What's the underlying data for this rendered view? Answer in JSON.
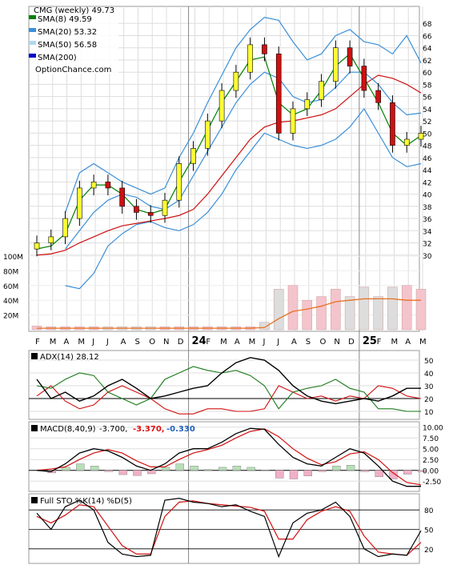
{
  "chart_data": [
    {
      "type": "candlestick",
      "title": "CMG (weekly) 49.73",
      "watermark": "OptionChance.com",
      "legend": [
        {
          "label": "SMA(8) 49.59",
          "color": "#008000"
        },
        {
          "label": "SMA(20) 53.32",
          "color": "#3a8fd9"
        },
        {
          "label": "SMA(50) 56.58",
          "color": "#b0d8f0"
        },
        {
          "label": "SMA(200)",
          "color": "#0000cc"
        }
      ],
      "price_ticks": [
        30,
        32,
        34,
        36,
        38,
        40,
        42,
        44,
        46,
        48,
        50,
        52,
        54,
        56,
        58,
        60,
        62,
        64,
        66,
        68
      ],
      "ylim": [
        28,
        70
      ],
      "volume_ticks": [
        "20M",
        "40M",
        "60M",
        "80M",
        "100M"
      ],
      "x_labels": [
        "F",
        "M",
        "A",
        "M",
        "J",
        "J",
        "A",
        "S",
        "O",
        "N",
        "D",
        "24",
        "F",
        "M",
        "A",
        "M",
        "J",
        "J",
        "A",
        "S",
        "O",
        "N",
        "D",
        "25",
        "F",
        "M",
        "A",
        "M"
      ],
      "close_by_month": [
        32,
        33,
        36,
        41,
        42,
        41,
        38,
        37,
        36.5,
        39,
        45,
        47.5,
        52,
        57,
        60,
        64.5,
        63,
        50,
        54,
        55.5,
        58.5,
        64,
        61,
        57,
        55,
        48,
        49,
        50
      ],
      "sma8_by_month": [
        31,
        31.5,
        33.5,
        39,
        41.5,
        41.5,
        40,
        37.5,
        36.8,
        37.5,
        42,
        46,
        50.5,
        55,
        58.5,
        62,
        62.5,
        55,
        53,
        54,
        57,
        61,
        63,
        59,
        55,
        50,
        48,
        49.6
      ],
      "sma20_by_month": [
        null,
        null,
        31,
        34,
        37,
        39,
        40,
        39.5,
        38,
        37.5,
        39,
        43,
        47,
        51,
        55,
        58,
        60,
        59,
        56,
        55,
        55.5,
        57.5,
        60,
        60,
        58,
        55,
        53,
        53.3
      ],
      "sma50_by_month": [
        30,
        30.2,
        30.8,
        32,
        33,
        34,
        34.8,
        35.2,
        35.6,
        36,
        36.5,
        37.5,
        40,
        43,
        46,
        49,
        51,
        51.8,
        52,
        52.5,
        53,
        54,
        56,
        58,
        59.5,
        59,
        58,
        56.6
      ],
      "bb_upper_by_month": [
        null,
        null,
        37,
        43.5,
        45,
        43.5,
        42,
        41,
        40,
        41,
        46,
        50,
        55,
        59.5,
        64,
        67,
        69,
        68.5,
        65,
        62,
        63,
        66,
        67,
        65,
        64.5,
        63,
        66,
        61.5
      ],
      "bb_lower_by_month": [
        null,
        null,
        25,
        24.5,
        27,
        31.5,
        33.5,
        35,
        35.5,
        34.5,
        34,
        35,
        37,
        40,
        44,
        47,
        50,
        49,
        48,
        47.5,
        48,
        49,
        51,
        54,
        50,
        46,
        44.5,
        45
      ],
      "volume_by_month": [
        5,
        4,
        4,
        4,
        4,
        4,
        4,
        4,
        4,
        4,
        4,
        4,
        4,
        4,
        4,
        4,
        10,
        55,
        60,
        40,
        45,
        55,
        45,
        58,
        45,
        58,
        60,
        55
      ],
      "volume_avg_by_month": [
        2,
        2,
        2,
        2,
        2,
        2,
        2,
        2,
        2,
        2,
        2,
        2,
        2,
        2,
        2,
        2,
        3,
        15,
        25,
        28,
        32,
        38,
        40,
        42,
        42,
        42,
        40,
        40
      ]
    },
    {
      "type": "line",
      "title": "ADX(14) 28.12",
      "yticks": [
        10,
        20,
        30,
        40,
        50
      ],
      "ylim": [
        5,
        55
      ],
      "adx": [
        35,
        20,
        25,
        18,
        22,
        30,
        35,
        28,
        20,
        22,
        25,
        28,
        30,
        40,
        48,
        52,
        50,
        42,
        30,
        22,
        18,
        16,
        18,
        20,
        18,
        22,
        28,
        28
      ],
      "plus_di": [
        30,
        28,
        35,
        40,
        38,
        25,
        20,
        15,
        20,
        35,
        40,
        45,
        42,
        40,
        42,
        38,
        30,
        12,
        25,
        28,
        30,
        35,
        28,
        25,
        12,
        12,
        10,
        10
      ],
      "minus_di": [
        22,
        30,
        18,
        12,
        15,
        25,
        30,
        25,
        20,
        12,
        8,
        8,
        12,
        12,
        10,
        10,
        12,
        30,
        25,
        20,
        22,
        18,
        22,
        20,
        30,
        28,
        22,
        20
      ]
    },
    {
      "type": "line",
      "title": "MACD(8,40,9)",
      "values_text": [
        "-3.700,",
        "-3.370,",
        "-0.330"
      ],
      "yticks": [
        "10.00",
        "7.50",
        "5.00",
        "2.50",
        "0.00",
        "-2.50"
      ],
      "ylim": [
        -4.5,
        10.5
      ],
      "macd": [
        0,
        -0.3,
        1.5,
        4,
        5,
        4.5,
        3,
        1,
        0,
        1.5,
        4,
        5,
        5,
        6.5,
        8.5,
        9.7,
        9.5,
        6,
        3,
        1.5,
        1,
        3,
        5,
        4,
        1,
        -2.5,
        -3.7,
        -3.7
      ],
      "signal": [
        0,
        0.3,
        0.8,
        2.5,
        4,
        4.8,
        4,
        2.2,
        0.8,
        0.8,
        2.5,
        4,
        4.8,
        5.8,
        7.5,
        9,
        9.6,
        7.8,
        5,
        2.8,
        1.3,
        2,
        3.8,
        4.3,
        2.5,
        -0.5,
        -2.8,
        -3.37
      ],
      "histogram": [
        0,
        -0.6,
        0.7,
        1.5,
        1,
        -0.3,
        -1,
        -1.2,
        -0.8,
        0.7,
        1.5,
        1,
        0.2,
        0.7,
        1,
        0.7,
        -0.1,
        -1.8,
        -2,
        -1.3,
        -0.3,
        1,
        1.2,
        -0.3,
        -1.5,
        -2,
        -0.9,
        -0.33
      ]
    },
    {
      "type": "line",
      "title": "Full STO %K(14) %D(5)",
      "yticks": [
        20,
        50,
        80
      ],
      "ylim": [
        0,
        100
      ],
      "k": [
        75,
        50,
        85,
        95,
        80,
        30,
        12,
        8,
        10,
        95,
        98,
        92,
        90,
        85,
        88,
        78,
        70,
        8,
        60,
        75,
        80,
        92,
        70,
        20,
        8,
        12,
        10,
        48
      ],
      "d": [
        70,
        60,
        72,
        88,
        85,
        55,
        25,
        12,
        12,
        70,
        92,
        94,
        90,
        88,
        86,
        84,
        78,
        35,
        35,
        65,
        78,
        85,
        78,
        40,
        15,
        12,
        10,
        30
      ]
    }
  ]
}
